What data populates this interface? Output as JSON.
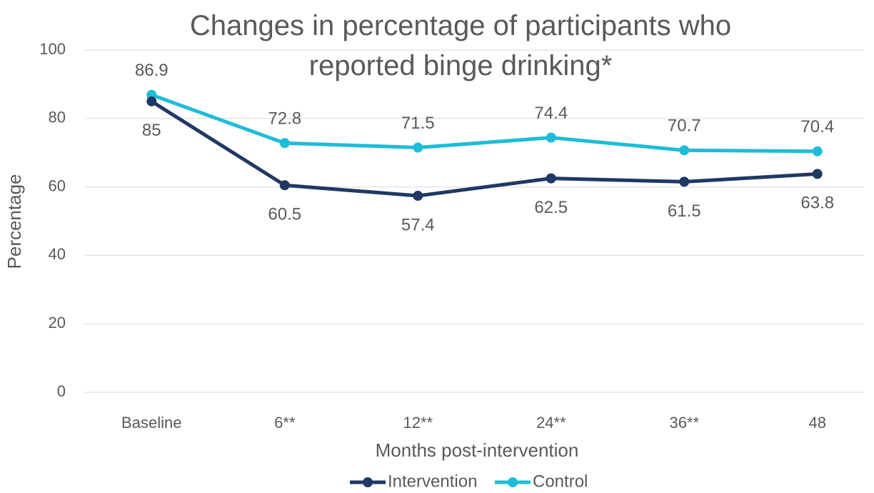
{
  "chart_data": {
    "type": "line",
    "title": "Changes in percentage of participants who reported binge drinking*",
    "x_label": "Months post-intervention",
    "y_label": "Percentage",
    "categories": [
      "Baseline",
      "6**",
      "12**",
      "24**",
      "36**",
      "48"
    ],
    "series": [
      {
        "name": "Intervention",
        "color": "#203864",
        "values": [
          85,
          60.5,
          57.4,
          62.5,
          61.5,
          63.8
        ]
      },
      {
        "name": "Control",
        "color": "#1fbcd8",
        "values": [
          86.9,
          72.8,
          71.5,
          74.4,
          70.7,
          70.4
        ]
      }
    ],
    "ylim": [
      0,
      100
    ],
    "yticks": [
      0,
      20,
      40,
      60,
      80,
      100
    ],
    "grid": true,
    "legend": "bottom"
  }
}
